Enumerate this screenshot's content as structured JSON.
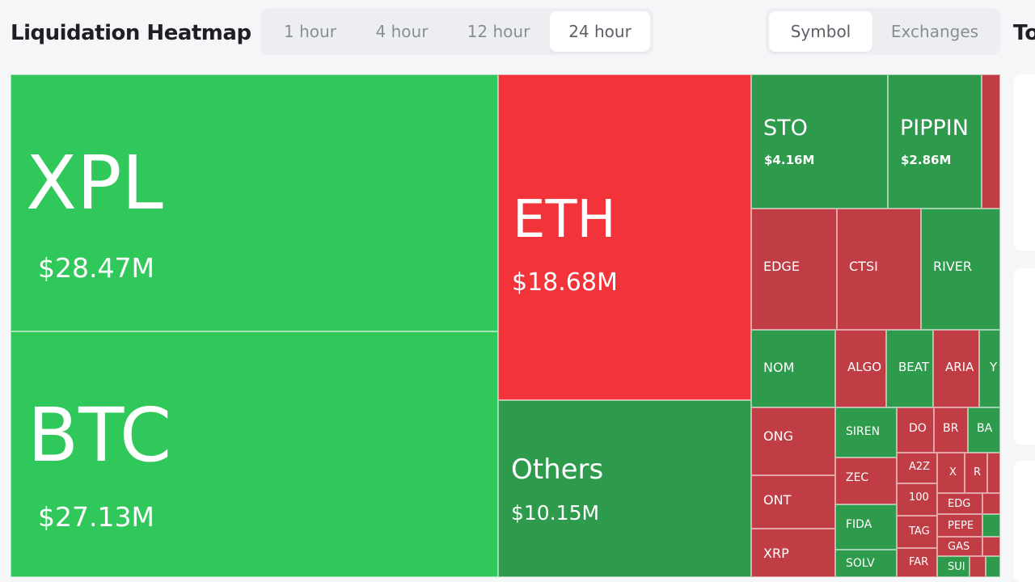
{
  "header": {
    "title": "Liquidation Heatmap",
    "time_options": [
      "1 hour",
      "4 hour",
      "12 hour",
      "24 hour"
    ],
    "active_time": "24 hour",
    "group_options": [
      "Symbol",
      "Exchanges"
    ],
    "active_group": "Symbol",
    "right_title": "To"
  },
  "colors": {
    "bright_green": "#30c85a",
    "dark_green": "#2e9a4b",
    "bright_red": "#f3333a",
    "dark_red": "#c13d45"
  },
  "tiles": {
    "xpl": {
      "symbol": "XPL",
      "value": "$28.47M",
      "color": "bright_green"
    },
    "btc": {
      "symbol": "BTC",
      "value": "$27.13M",
      "color": "bright_green"
    },
    "eth": {
      "symbol": "ETH",
      "value": "$18.68M",
      "color": "bright_red"
    },
    "others": {
      "symbol": "Others",
      "value": "$10.15M",
      "color": "dark_green"
    },
    "sto": {
      "symbol": "STO",
      "value": "$4.16M",
      "color": "dark_green"
    },
    "pippin": {
      "symbol": "PIPPIN",
      "value": "$2.86M",
      "color": "dark_green"
    },
    "edge": {
      "symbol": "EDGE",
      "color": "dark_red"
    },
    "ctsi": {
      "symbol": "CTSI",
      "color": "dark_red"
    },
    "river": {
      "symbol": "RIVER",
      "color": "dark_green"
    },
    "nom": {
      "symbol": "NOM",
      "color": "dark_green"
    },
    "algo": {
      "symbol": "ALGO",
      "color": "dark_red"
    },
    "beat": {
      "symbol": "BEAT",
      "color": "dark_green"
    },
    "aria": {
      "symbol": "ARIA",
      "color": "dark_red"
    },
    "y": {
      "symbol": "Y",
      "color": "dark_green"
    },
    "ong": {
      "symbol": "ONG",
      "color": "dark_red"
    },
    "siren": {
      "symbol": "SIREN",
      "color": "dark_green"
    },
    "do": {
      "symbol": "DO",
      "color": "dark_red"
    },
    "br": {
      "symbol": "BR",
      "color": "dark_red"
    },
    "ba": {
      "symbol": "BA",
      "color": "dark_green"
    },
    "zec": {
      "symbol": "ZEC",
      "color": "dark_red"
    },
    "a2z": {
      "symbol": "A2Z",
      "color": "dark_red"
    },
    "x": {
      "symbol": "X",
      "color": "dark_red"
    },
    "r": {
      "symbol": "R",
      "color": "dark_red"
    },
    "ont": {
      "symbol": "ONT",
      "color": "dark_red"
    },
    "k1000": {
      "symbol": "100",
      "color": "dark_red"
    },
    "edg": {
      "symbol": "EDG",
      "color": "dark_red"
    },
    "fida": {
      "symbol": "FIDA",
      "color": "dark_green"
    },
    "tag": {
      "symbol": "TAG",
      "color": "dark_red"
    },
    "pepe": {
      "symbol": "PEPE",
      "color": "dark_red"
    },
    "gas": {
      "symbol": "GAS",
      "color": "dark_red"
    },
    "xrp": {
      "symbol": "XRP",
      "color": "dark_red"
    },
    "solv": {
      "symbol": "SOLV",
      "color": "dark_green"
    },
    "far": {
      "symbol": "FAR",
      "color": "dark_red"
    },
    "sui": {
      "symbol": "SUI",
      "color": "dark_green"
    }
  }
}
